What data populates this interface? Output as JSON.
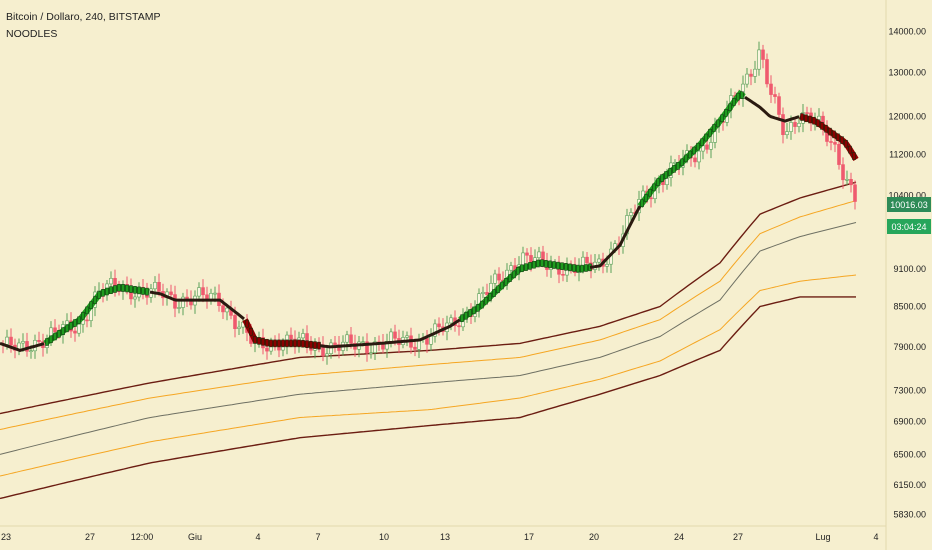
{
  "header": {
    "title": "Bitcoin / Dollaro, 240, BITSTAMP",
    "indicator": "NOODLES"
  },
  "colors": {
    "background": "#f6efcf",
    "candle_up_body": "#fbf6e0",
    "candle_up_border": "#5aa05a",
    "candle_down": "#ef5a6e",
    "noodle_up": "#1f9b1f",
    "noodle_down": "#8b0000",
    "noodle_flat": "#2a1a10",
    "band_dark": "#6b1d12",
    "band_orange": "#f5a623",
    "band_gray": "#6e7063",
    "price_tag": "#2e8b57",
    "timer_tag": "#26a65b"
  },
  "price_scale": {
    "labels": [
      "14000.00",
      "13000.00",
      "12000.00",
      "11200.00",
      "10400.00",
      "9100.00",
      "8500.00",
      "7900.00",
      "7300.00",
      "6900.00",
      "6500.00",
      "6150.00",
      "5830.00"
    ],
    "current_price": "10016.03",
    "countdown": "03:04:24"
  },
  "time_axis": {
    "labels": [
      "23",
      "27",
      "12:00",
      "Giu",
      "4",
      "7",
      "10",
      "13",
      "17",
      "20",
      "24",
      "27",
      "Lug",
      "4"
    ]
  },
  "chart_data": {
    "type": "line",
    "title": "Bitcoin / Dollaro, 240, BITSTAMP",
    "subtitle": "NOODLES",
    "xlabel": "",
    "ylabel": "",
    "ylim": [
      5750,
      14450
    ],
    "y_scale": "log",
    "x_ticks": [
      "23",
      "27",
      "12:00",
      "Giu",
      "4",
      "7",
      "10",
      "13",
      "17",
      "20",
      "24",
      "27",
      "Lug",
      "4"
    ],
    "grid": false,
    "anchors": {
      "x": [
        0,
        20,
        45,
        80,
        90,
        100,
        120,
        160,
        175,
        195,
        220,
        245,
        255,
        270,
        280,
        300,
        330,
        380,
        420,
        450,
        480,
        520,
        540,
        560,
        580,
        600,
        620,
        640,
        660,
        680,
        700,
        720,
        740,
        760,
        770,
        785,
        800,
        815,
        825,
        835,
        845,
        850,
        856
      ],
      "price": [
        7950,
        7850,
        8050,
        8200,
        8550,
        8750,
        8800,
        8700,
        8600,
        8650,
        8600,
        8100,
        7900,
        7950,
        8000,
        7950,
        7900,
        7950,
        8000,
        8200,
        8600,
        9300,
        9200,
        9150,
        9100,
        9200,
        9600,
        10300,
        10700,
        11000,
        11300,
        11800,
        12600,
        13500,
        12500,
        11600,
        12100,
        11900,
        11600,
        11300,
        10800,
        10600,
        10350
      ],
      "noodle": [
        7950,
        7850,
        7950,
        8300,
        8500,
        8700,
        8800,
        8700,
        8600,
        8600,
        8600,
        8300,
        8000,
        7950,
        7950,
        7950,
        7900,
        7950,
        8000,
        8200,
        8500,
        9100,
        9200,
        9150,
        9100,
        9150,
        9500,
        10200,
        10700,
        11000,
        11400,
        11900,
        12500,
        12200,
        12000,
        11900,
        12000,
        11900,
        11750,
        11600,
        11450,
        11300,
        11100
      ]
    },
    "noodle_trend": [
      [
        "flat",
        0,
        45
      ],
      [
        "up",
        45,
        150
      ],
      [
        "flat",
        150,
        245
      ],
      [
        "down",
        245,
        320
      ],
      [
        "flat",
        320,
        460
      ],
      [
        "up",
        460,
        590
      ],
      [
        "flat",
        590,
        640
      ],
      [
        "up",
        640,
        745
      ],
      [
        "flat",
        745,
        800
      ],
      [
        "down",
        800,
        857
      ]
    ],
    "bands": [
      {
        "color_key": "band_dark",
        "x": [
          0,
          150,
          300,
          430,
          520,
          600,
          660,
          720,
          760,
          800,
          856
        ],
        "price": [
          7000,
          7400,
          7750,
          7850,
          7950,
          8200,
          8500,
          9200,
          10050,
          10350,
          10650
        ]
      },
      {
        "color_key": "band_orange",
        "x": [
          0,
          150,
          300,
          430,
          520,
          600,
          660,
          720,
          760,
          800,
          856
        ],
        "price": [
          6800,
          7200,
          7500,
          7650,
          7750,
          8000,
          8300,
          8900,
          9700,
          10000,
          10300
        ]
      },
      {
        "color_key": "band_gray",
        "x": [
          0,
          150,
          300,
          430,
          520,
          600,
          660,
          720,
          760,
          800,
          856
        ],
        "price": [
          6500,
          6950,
          7250,
          7400,
          7500,
          7750,
          8050,
          8600,
          9400,
          9650,
          9900
        ]
      },
      {
        "color_key": "band_orange",
        "x": [
          0,
          150,
          300,
          430,
          520,
          600,
          660,
          720,
          760,
          800,
          856
        ],
        "price": [
          6250,
          6650,
          6950,
          7050,
          7200,
          7450,
          7700,
          8150,
          8750,
          8900,
          9000
        ]
      },
      {
        "color_key": "band_dark",
        "x": [
          0,
          150,
          300,
          430,
          520,
          600,
          660,
          720,
          760,
          800,
          856
        ],
        "price": [
          6000,
          6400,
          6700,
          6850,
          6950,
          7250,
          7500,
          7850,
          8500,
          8650,
          8650
        ]
      }
    ]
  }
}
